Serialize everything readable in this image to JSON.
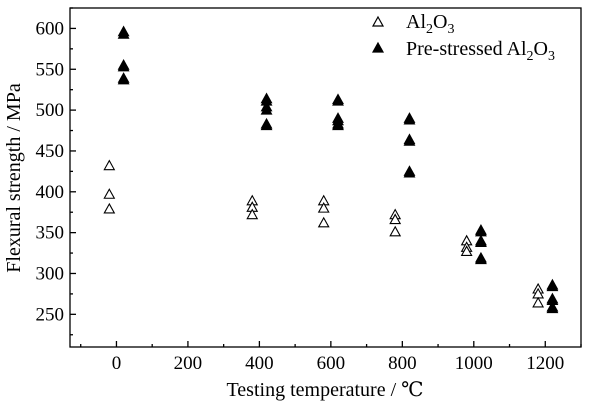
{
  "chart_data": {
    "type": "scatter",
    "xlabel": "Testing temperature / ℃",
    "ylabel": "Flexural strength / MPa",
    "xlim": [
      -130,
      1300
    ],
    "ylim": [
      210,
      625
    ],
    "x_ticks": [
      "0",
      "200",
      "400",
      "600",
      "800",
      "1000",
      "1200"
    ],
    "y_ticks": [
      "250",
      "300",
      "350",
      "400",
      "450",
      "500",
      "550",
      "600"
    ],
    "x_tick_values": [
      0,
      200,
      400,
      600,
      800,
      1000,
      1200
    ],
    "y_tick_values": [
      250,
      300,
      350,
      400,
      450,
      500,
      550,
      600
    ],
    "grid": false,
    "legend_position": "top-right",
    "series": [
      {
        "name": "Al2O3",
        "legend_base": "Al",
        "legend_sub1": "2",
        "legend_mid": "O",
        "legend_sub2": "3",
        "marker": "open-triangle",
        "points": [
          [
            -20,
            432
          ],
          [
            -20,
            397
          ],
          [
            -20,
            379
          ],
          [
            380,
            389
          ],
          [
            380,
            381
          ],
          [
            380,
            372
          ],
          [
            580,
            389
          ],
          [
            580,
            380
          ],
          [
            580,
            362
          ],
          [
            780,
            372
          ],
          [
            780,
            366
          ],
          [
            780,
            351
          ],
          [
            980,
            340
          ],
          [
            980,
            332
          ],
          [
            980,
            327
          ],
          [
            1180,
            281
          ],
          [
            1180,
            275
          ],
          [
            1180,
            264
          ]
        ]
      },
      {
        "name": "Pre-stressed Al2O3",
        "legend_base": "Pre-stressed Al",
        "legend_sub1": "2",
        "legend_mid": "O",
        "legend_sub2": "3",
        "marker": "half-filled-triangle",
        "points": [
          [
            20,
            596
          ],
          [
            20,
            593
          ],
          [
            20,
            555
          ],
          [
            20,
            553
          ],
          [
            20,
            539
          ],
          [
            20,
            537
          ],
          [
            420,
            514
          ],
          [
            420,
            511
          ],
          [
            420,
            504
          ],
          [
            420,
            500
          ],
          [
            420,
            483
          ],
          [
            420,
            481
          ],
          [
            620,
            513
          ],
          [
            620,
            511
          ],
          [
            620,
            490
          ],
          [
            620,
            487
          ],
          [
            620,
            483
          ],
          [
            620,
            481
          ],
          [
            820,
            490
          ],
          [
            820,
            488
          ],
          [
            820,
            464
          ],
          [
            820,
            462
          ],
          [
            820,
            425
          ],
          [
            820,
            423
          ],
          [
            1020,
            353
          ],
          [
            1020,
            351
          ],
          [
            1020,
            340
          ],
          [
            1020,
            338
          ],
          [
            1020,
            319
          ],
          [
            1020,
            317
          ],
          [
            1220,
            286
          ],
          [
            1220,
            284
          ],
          [
            1220,
            269
          ],
          [
            1220,
            267
          ],
          [
            1220,
            259
          ],
          [
            1220,
            257
          ]
        ]
      }
    ]
  }
}
